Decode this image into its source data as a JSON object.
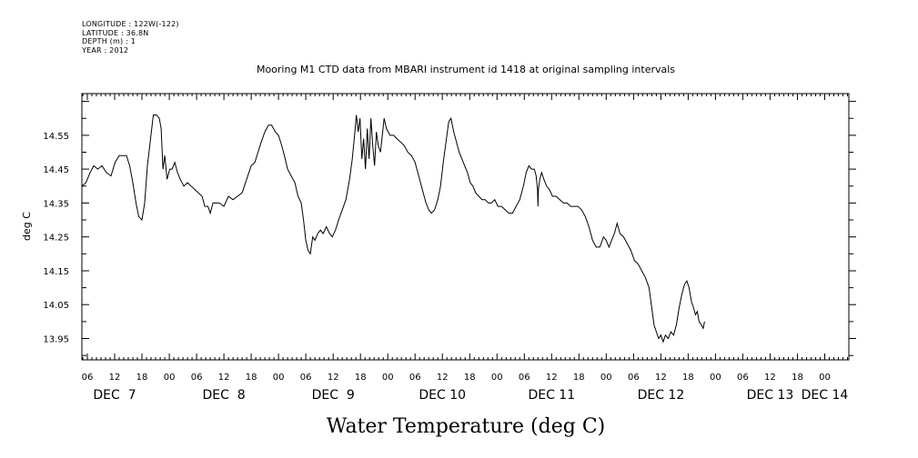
{
  "meta_lines": [
    "LONGITUDE : 122W(-122)",
    "LATITUDE : 36.8N",
    "DEPTH (m) : 1",
    "YEAR : 2012"
  ],
  "chart_data": {
    "type": "line",
    "title": "Mooring M1 CTD data from MBARI instrument id 1418 at original sampling intervals",
    "xlabel": "Water Temperature (deg C)",
    "ylabel": "deg C",
    "xlim": [
      4.8,
      173.3
    ],
    "ylim": [
      13.887,
      14.673
    ],
    "grid": false,
    "legend": "none",
    "line_color": "#000000",
    "x_unit": "hours since Dec 7 00:00",
    "y_ticks": [
      "14.55",
      "14.45",
      "14.35",
      "14.25",
      "14.15",
      "14.05",
      "13.95"
    ],
    "x_hour_ticks": [
      {
        "x": 6,
        "label": "06"
      },
      {
        "x": 12,
        "label": "12"
      },
      {
        "x": 18,
        "label": "18"
      },
      {
        "x": 24,
        "label": "00"
      },
      {
        "x": 30,
        "label": "06"
      },
      {
        "x": 36,
        "label": "12"
      },
      {
        "x": 42,
        "label": "18"
      },
      {
        "x": 48,
        "label": "00"
      },
      {
        "x": 54,
        "label": "06"
      },
      {
        "x": 60,
        "label": "12"
      },
      {
        "x": 66,
        "label": "18"
      },
      {
        "x": 72,
        "label": "00"
      },
      {
        "x": 78,
        "label": "06"
      },
      {
        "x": 84,
        "label": "12"
      },
      {
        "x": 90,
        "label": "18"
      },
      {
        "x": 96,
        "label": "00"
      },
      {
        "x": 102,
        "label": "06"
      },
      {
        "x": 108,
        "label": "12"
      },
      {
        "x": 114,
        "label": "18"
      },
      {
        "x": 120,
        "label": "00"
      },
      {
        "x": 126,
        "label": "06"
      },
      {
        "x": 132,
        "label": "12"
      },
      {
        "x": 138,
        "label": "18"
      },
      {
        "x": 144,
        "label": "00"
      },
      {
        "x": 150,
        "label": "06"
      },
      {
        "x": 156,
        "label": "12"
      },
      {
        "x": 162,
        "label": "18"
      },
      {
        "x": 168,
        "label": "00"
      }
    ],
    "day_labels": [
      {
        "x": 12,
        "label": "DEC  7"
      },
      {
        "x": 36,
        "label": "DEC  8"
      },
      {
        "x": 60,
        "label": "DEC  9"
      },
      {
        "x": 84,
        "label": "DEC 10"
      },
      {
        "x": 108,
        "label": "DEC 11"
      },
      {
        "x": 132,
        "label": "DEC 12"
      },
      {
        "x": 156,
        "label": "DEC 13"
      },
      {
        "x": 168,
        "label": "DEC 14"
      }
    ],
    "series": [
      {
        "points": [
          [
            4.8,
            14.4
          ],
          [
            5.7,
            14.41
          ],
          [
            6.6,
            14.44
          ],
          [
            7.4,
            14.46
          ],
          [
            8.3,
            14.45
          ],
          [
            9.2,
            14.46
          ],
          [
            10.2,
            14.44
          ],
          [
            11.2,
            14.43
          ],
          [
            12.1,
            14.47
          ],
          [
            13.0,
            14.49
          ],
          [
            14.0,
            14.49
          ],
          [
            14.6,
            14.49
          ],
          [
            15.3,
            14.46
          ],
          [
            16.0,
            14.41
          ],
          [
            16.7,
            14.35
          ],
          [
            17.3,
            14.31
          ],
          [
            18.0,
            14.3
          ],
          [
            18.6,
            14.35
          ],
          [
            19.2,
            14.46
          ],
          [
            19.9,
            14.54
          ],
          [
            20.5,
            14.61
          ],
          [
            21.2,
            14.61
          ],
          [
            21.8,
            14.6
          ],
          [
            22.2,
            14.57
          ],
          [
            22.6,
            14.45
          ],
          [
            23.0,
            14.49
          ],
          [
            23.5,
            14.42
          ],
          [
            24.1,
            14.45
          ],
          [
            24.6,
            14.45
          ],
          [
            25.2,
            14.47
          ],
          [
            25.8,
            14.44
          ],
          [
            26.4,
            14.42
          ],
          [
            27.2,
            14.4
          ],
          [
            28.0,
            14.41
          ],
          [
            28.8,
            14.4
          ],
          [
            29.6,
            14.39
          ],
          [
            30.4,
            14.38
          ],
          [
            31.2,
            14.37
          ],
          [
            31.8,
            14.34
          ],
          [
            32.5,
            14.34
          ],
          [
            33.0,
            14.32
          ],
          [
            33.6,
            14.35
          ],
          [
            34.2,
            14.35
          ],
          [
            35.0,
            14.35
          ],
          [
            36.0,
            14.34
          ],
          [
            37.0,
            14.37
          ],
          [
            38.0,
            14.36
          ],
          [
            39.0,
            14.37
          ],
          [
            40.0,
            14.38
          ],
          [
            41.0,
            14.42
          ],
          [
            42.0,
            14.46
          ],
          [
            42.8,
            14.47
          ],
          [
            43.5,
            14.5
          ],
          [
            44.2,
            14.53
          ],
          [
            45.0,
            14.56
          ],
          [
            45.8,
            14.58
          ],
          [
            46.5,
            14.58
          ],
          [
            47.3,
            14.56
          ],
          [
            48.0,
            14.55
          ],
          [
            48.7,
            14.52
          ],
          [
            49.3,
            14.49
          ],
          [
            50.0,
            14.45
          ],
          [
            50.8,
            14.43
          ],
          [
            51.6,
            14.41
          ],
          [
            52.3,
            14.37
          ],
          [
            53.0,
            14.35
          ],
          [
            53.5,
            14.3
          ],
          [
            54.0,
            14.24
          ],
          [
            54.5,
            14.21
          ],
          [
            55.0,
            14.2
          ],
          [
            55.5,
            14.25
          ],
          [
            56.0,
            14.24
          ],
          [
            56.6,
            14.26
          ],
          [
            57.2,
            14.27
          ],
          [
            57.8,
            14.26
          ],
          [
            58.5,
            14.28
          ],
          [
            59.2,
            14.26
          ],
          [
            59.8,
            14.25
          ],
          [
            60.5,
            14.27
          ],
          [
            61.2,
            14.3
          ],
          [
            62.0,
            14.33
          ],
          [
            62.8,
            14.36
          ],
          [
            63.6,
            14.42
          ],
          [
            64.2,
            14.48
          ],
          [
            64.7,
            14.55
          ],
          [
            65.1,
            14.61
          ],
          [
            65.5,
            14.56
          ],
          [
            65.9,
            14.6
          ],
          [
            66.3,
            14.48
          ],
          [
            66.7,
            14.54
          ],
          [
            67.1,
            14.45
          ],
          [
            67.5,
            14.57
          ],
          [
            67.9,
            14.48
          ],
          [
            68.3,
            14.6
          ],
          [
            68.7,
            14.52
          ],
          [
            69.1,
            14.46
          ],
          [
            69.5,
            14.56
          ],
          [
            69.9,
            14.52
          ],
          [
            70.4,
            14.5
          ],
          [
            70.8,
            14.55
          ],
          [
            71.2,
            14.6
          ],
          [
            71.7,
            14.57
          ],
          [
            72.5,
            14.55
          ],
          [
            73.3,
            14.55
          ],
          [
            74.0,
            14.54
          ],
          [
            74.8,
            14.53
          ],
          [
            75.6,
            14.52
          ],
          [
            76.4,
            14.5
          ],
          [
            77.2,
            14.49
          ],
          [
            78.0,
            14.47
          ],
          [
            78.6,
            14.44
          ],
          [
            79.2,
            14.41
          ],
          [
            79.8,
            14.38
          ],
          [
            80.4,
            14.35
          ],
          [
            81.0,
            14.33
          ],
          [
            81.6,
            14.32
          ],
          [
            82.3,
            14.33
          ],
          [
            83.0,
            14.36
          ],
          [
            83.6,
            14.4
          ],
          [
            84.2,
            14.47
          ],
          [
            84.8,
            14.53
          ],
          [
            85.4,
            14.59
          ],
          [
            85.9,
            14.6
          ],
          [
            86.5,
            14.56
          ],
          [
            87.1,
            14.53
          ],
          [
            87.7,
            14.5
          ],
          [
            88.3,
            14.48
          ],
          [
            88.9,
            14.46
          ],
          [
            89.5,
            14.44
          ],
          [
            90.1,
            14.41
          ],
          [
            90.7,
            14.4
          ],
          [
            91.3,
            14.38
          ],
          [
            92.0,
            14.37
          ],
          [
            92.7,
            14.36
          ],
          [
            93.4,
            14.36
          ],
          [
            94.1,
            14.35
          ],
          [
            94.8,
            14.35
          ],
          [
            95.5,
            14.36
          ],
          [
            96.2,
            14.34
          ],
          [
            97.0,
            14.34
          ],
          [
            97.8,
            14.33
          ],
          [
            98.6,
            14.32
          ],
          [
            99.4,
            14.32
          ],
          [
            100.2,
            14.34
          ],
          [
            101.0,
            14.36
          ],
          [
            101.8,
            14.4
          ],
          [
            102.4,
            14.44
          ],
          [
            103.0,
            14.46
          ],
          [
            103.6,
            14.45
          ],
          [
            104.2,
            14.45
          ],
          [
            104.6,
            14.43
          ],
          [
            104.9,
            14.39
          ],
          [
            105.0,
            14.34
          ],
          [
            105.1,
            14.39
          ],
          [
            105.4,
            14.42
          ],
          [
            105.8,
            14.44
          ],
          [
            106.3,
            14.42
          ],
          [
            106.9,
            14.4
          ],
          [
            107.5,
            14.39
          ],
          [
            108.2,
            14.37
          ],
          [
            109.0,
            14.37
          ],
          [
            109.8,
            14.36
          ],
          [
            110.6,
            14.35
          ],
          [
            111.4,
            14.35
          ],
          [
            112.2,
            14.34
          ],
          [
            113.0,
            14.34
          ],
          [
            113.8,
            14.34
          ],
          [
            114.6,
            14.33
          ],
          [
            115.4,
            14.31
          ],
          [
            116.2,
            14.28
          ],
          [
            117.0,
            14.24
          ],
          [
            117.8,
            14.22
          ],
          [
            118.6,
            14.22
          ],
          [
            119.4,
            14.25
          ],
          [
            120.0,
            14.24
          ],
          [
            120.6,
            14.22
          ],
          [
            121.2,
            14.24
          ],
          [
            121.8,
            14.26
          ],
          [
            122.4,
            14.29
          ],
          [
            123.0,
            14.26
          ],
          [
            123.8,
            14.25
          ],
          [
            124.6,
            14.23
          ],
          [
            125.4,
            14.21
          ],
          [
            126.2,
            14.18
          ],
          [
            127.0,
            14.17
          ],
          [
            127.8,
            14.15
          ],
          [
            128.6,
            14.13
          ],
          [
            129.4,
            14.1
          ],
          [
            130.0,
            14.04
          ],
          [
            130.5,
            13.99
          ],
          [
            131.0,
            13.97
          ],
          [
            131.5,
            13.95
          ],
          [
            132.0,
            13.96
          ],
          [
            132.5,
            13.94
          ],
          [
            133.0,
            13.96
          ],
          [
            133.6,
            13.95
          ],
          [
            134.2,
            13.97
          ],
          [
            134.8,
            13.96
          ],
          [
            135.4,
            13.99
          ],
          [
            136.0,
            14.04
          ],
          [
            136.6,
            14.08
          ],
          [
            137.2,
            14.11
          ],
          [
            137.7,
            14.12
          ],
          [
            138.2,
            14.1
          ],
          [
            138.7,
            14.06
          ],
          [
            139.2,
            14.04
          ],
          [
            139.6,
            14.02
          ],
          [
            140.0,
            14.03
          ],
          [
            140.4,
            14.0
          ],
          [
            140.9,
            13.99
          ],
          [
            141.3,
            13.98
          ],
          [
            141.6,
            14.0
          ]
        ]
      }
    ]
  }
}
